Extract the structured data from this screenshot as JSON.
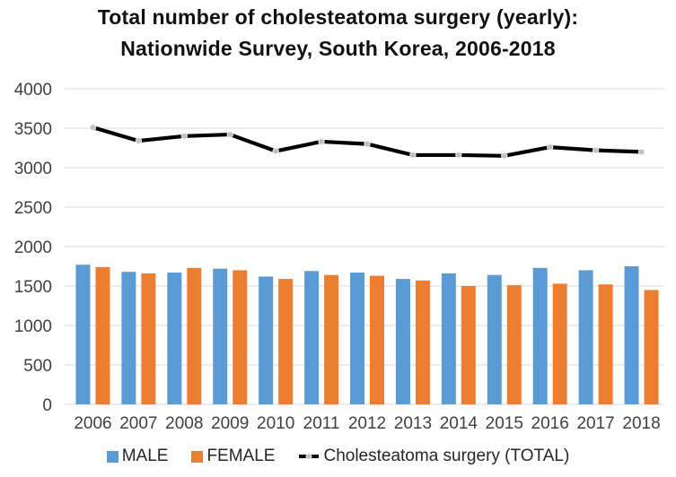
{
  "title": {
    "line1": "Total number of cholesteatoma surgery (yearly):",
    "line2": "Nationwide Survey, South Korea, 2006-2018"
  },
  "chart_data": {
    "type": "bar",
    "title": "Total number of cholesteatoma surgery (yearly): Nationwide Survey, South Korea, 2006-2018",
    "categories": [
      "2006",
      "2007",
      "2008",
      "2009",
      "2010",
      "2011",
      "2012",
      "2013",
      "2014",
      "2015",
      "2016",
      "2017",
      "2018"
    ],
    "series": [
      {
        "name": "MALE",
        "type": "bar",
        "color": "#5B9BD5",
        "values": [
          1770,
          1680,
          1670,
          1720,
          1620,
          1690,
          1670,
          1590,
          1660,
          1640,
          1730,
          1700,
          1750
        ]
      },
      {
        "name": "FEMALE",
        "type": "bar",
        "color": "#ED7D31",
        "values": [
          1740,
          1660,
          1730,
          1700,
          1590,
          1640,
          1630,
          1570,
          1500,
          1510,
          1530,
          1520,
          1450
        ]
      },
      {
        "name": "Cholesteatoma surgery (TOTAL)",
        "type": "line",
        "color": "#000000",
        "marker_color": "#BFBFBF",
        "marker_edge_color": "#ECECEC",
        "values": [
          3510,
          3340,
          3400,
          3420,
          3210,
          3330,
          3300,
          3160,
          3160,
          3150,
          3260,
          3220,
          3200
        ]
      }
    ],
    "xlabel": "",
    "ylabel": "",
    "ylim": [
      0,
      4000
    ],
    "yticks": [
      0,
      500,
      1000,
      1500,
      2000,
      2500,
      3000,
      3500,
      4000
    ],
    "grid": "horizontal",
    "gridline_color": "#D9D9D9",
    "axis_text_color": "#404040",
    "legend_position": "bottom"
  }
}
